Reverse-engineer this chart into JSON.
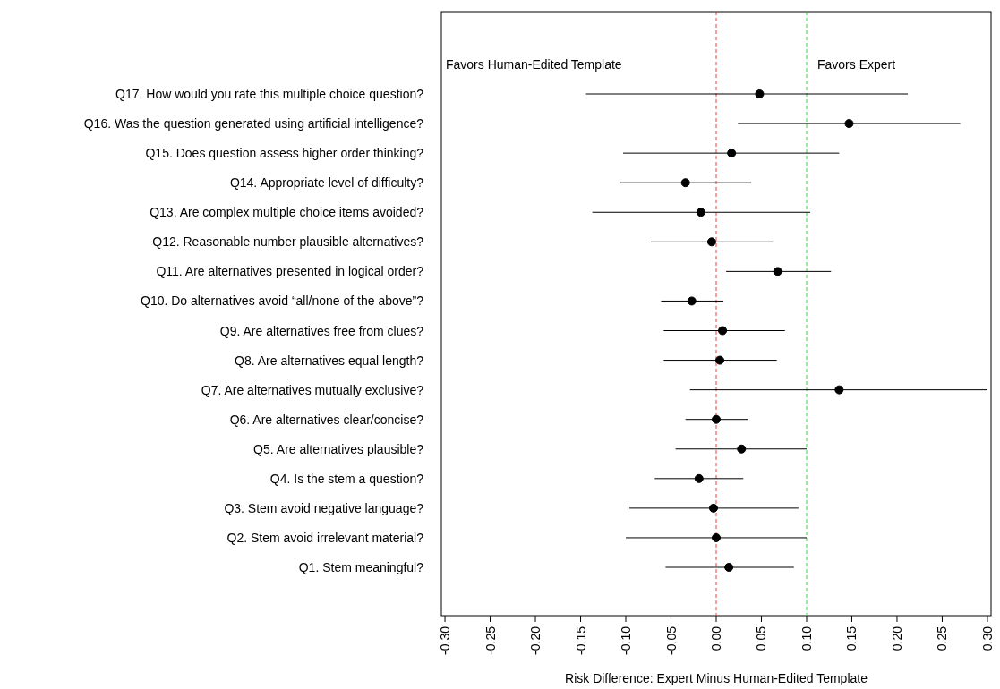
{
  "chart_data": {
    "type": "scatter",
    "orientation": "horizontal",
    "xlabel": "Risk Difference: Expert Minus Human-Edited Template",
    "categories": [
      "Q17. How would you rate this multiple choice question?",
      "Q16. Was the question generated using artificial intelligence?",
      "Q15. Does question assess higher order thinking?",
      "Q14. Appropriate level of difficulty?",
      "Q13. Are complex multiple choice items avoided?",
      "Q12. Reasonable number plausible alternatives?",
      "Q11. Are alternatives presented in logical order?",
      "Q10. Do alternatives avoid “all/none of the above”?",
      "Q9. Are alternatives free from clues?",
      "Q8. Are alternatives equal length?",
      "Q7. Are alternatives mutually exclusive?",
      "Q6. Are alternatives clear/concise?",
      "Q5. Are alternatives plausible?",
      "Q4. Is the stem a question?",
      "Q3. Stem avoid negative language?",
      "Q2. Stem avoid irrelevant material?",
      "Q1. Stem meaningful?"
    ],
    "series": [
      {
        "color": "#000000",
        "values": [
          0.048,
          0.147,
          0.017,
          -0.034,
          -0.017,
          -0.005,
          0.068,
          -0.027,
          0.007,
          0.004,
          0.136,
          0,
          0.028,
          -0.019,
          -0.003,
          0,
          0.014
        ],
        "errors": [
          [
            -0.144,
            0.212
          ],
          [
            0.024,
            0.27
          ],
          [
            -0.103,
            0.136
          ],
          [
            -0.106,
            0.039
          ],
          [
            -0.137,
            0.104
          ],
          [
            -0.072,
            0.063
          ],
          [
            0.011,
            0.127
          ],
          [
            -0.061,
            0.008
          ],
          [
            -0.058,
            0.076
          ],
          [
            -0.058,
            0.067
          ],
          [
            -0.029,
            0.3
          ],
          [
            -0.034,
            0.035
          ],
          [
            -0.045,
            0.1
          ],
          [
            -0.068,
            0.03
          ],
          [
            -0.096,
            0.091
          ],
          [
            -0.1,
            0.1
          ],
          [
            -0.056,
            0.086
          ]
        ]
      }
    ],
    "xlim": [
      -0.304,
      0.304
    ],
    "xticks": [
      {
        "value": -0.3,
        "label": "-0.30"
      },
      {
        "value": -0.25,
        "label": "-0.25"
      },
      {
        "value": -0.2,
        "label": "-0.20"
      },
      {
        "value": -0.15,
        "label": "-0.15"
      },
      {
        "value": -0.1,
        "label": "-0.10"
      },
      {
        "value": -0.05,
        "label": "-0.05"
      },
      {
        "value": 0,
        "label": "0.00"
      },
      {
        "value": 0.05,
        "label": "0.05"
      },
      {
        "value": 0.1,
        "label": "0.10"
      },
      {
        "value": 0.15,
        "label": "0.15"
      },
      {
        "value": 0.2,
        "label": "0.20"
      },
      {
        "value": 0.25,
        "label": "0.25"
      },
      {
        "value": 0.3,
        "label": "0.30"
      }
    ],
    "ref_lines": [
      {
        "axis": "x",
        "value": 0,
        "color": "#e8413c",
        "line_style": "dashed"
      },
      {
        "axis": "x",
        "value": 0.1,
        "color": "#3cd23c",
        "line_style": "dashed"
      }
    ],
    "annotations": [
      "Favors Human-Edited Template",
      "Favors Expert"
    ],
    "marker": "circle",
    "grid": false
  }
}
